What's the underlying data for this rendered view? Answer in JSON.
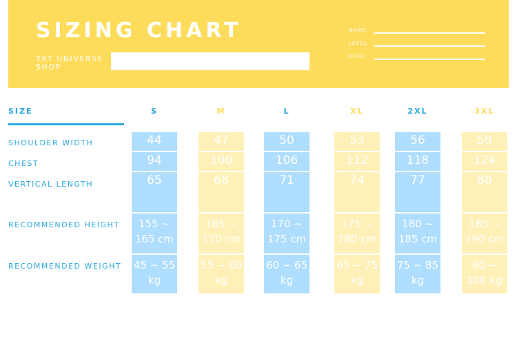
{
  "header": {
    "title": "SIZING CHART",
    "shop_name": "TXT UNIVERSE SHOP",
    "fields": [
      "NAME:",
      "LEVEL:",
      "DATE:"
    ]
  },
  "table": {
    "size_label": "SIZE",
    "sizes": [
      "S",
      "M",
      "L",
      "XL",
      "2XL",
      "3XL"
    ],
    "rows": [
      {
        "label": "SHOULDER WIDTH",
        "values": [
          "44",
          "47",
          "50",
          "53",
          "56",
          "59"
        ]
      },
      {
        "label": "CHEST",
        "values": [
          "94",
          "100",
          "106",
          "112",
          "118",
          "124"
        ]
      },
      {
        "label": "VERTICAL LENGTH",
        "values": [
          "65",
          "68",
          "71",
          "74",
          "77",
          "80"
        ]
      },
      {
        "label": "RECOMMENDED HEIGHT",
        "values": [
          "155 ~ 165 cm",
          "165 ~ 170 cm",
          "170 ~ 175 cm",
          "175 ~ 180 cm",
          "180 ~ 185 cm",
          "185 ~ 190 cm"
        ]
      },
      {
        "label": "RECOMMENDED WEIGHT",
        "values": [
          "45 ~ 55 kg",
          "55 ~ 60 kg",
          "60 ~ 65 kg",
          "65 ~ 75 kg",
          "75 ~ 85 kg",
          "80 ~ 100 kg"
        ]
      }
    ]
  },
  "colors": {
    "banner": "#FEDC5B",
    "accent_blue": "#2AA7DF",
    "accent_yellow": "#FEDC5B",
    "cell_blue": "#AEDDFD",
    "cell_yellow": "#FFF0B7"
  }
}
